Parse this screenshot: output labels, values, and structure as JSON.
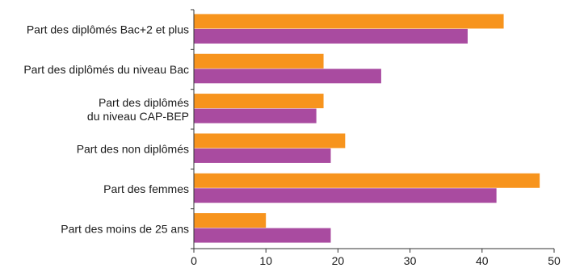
{
  "chart_data": {
    "type": "bar",
    "orientation": "horizontal",
    "categories": [
      [
        "Part des diplômés Bac+2 et plus"
      ],
      [
        "Part des diplômés du niveau Bac"
      ],
      [
        "Part des diplômés",
        "du niveau CAP-BEP"
      ],
      [
        "Part des non diplômés"
      ],
      [
        "Part des femmes"
      ],
      [
        "Part des moins de 25 ans"
      ]
    ],
    "series": [
      {
        "color": "#f7941d",
        "values": [
          43,
          18,
          18,
          21,
          48,
          10
        ]
      },
      {
        "color": "#a94ba0",
        "values": [
          38,
          26,
          17,
          19,
          42,
          19
        ]
      }
    ],
    "xlim": [
      0,
      50
    ],
    "xticks": [
      0,
      10,
      20,
      30,
      40,
      50
    ],
    "grid": false,
    "legend": "none"
  }
}
